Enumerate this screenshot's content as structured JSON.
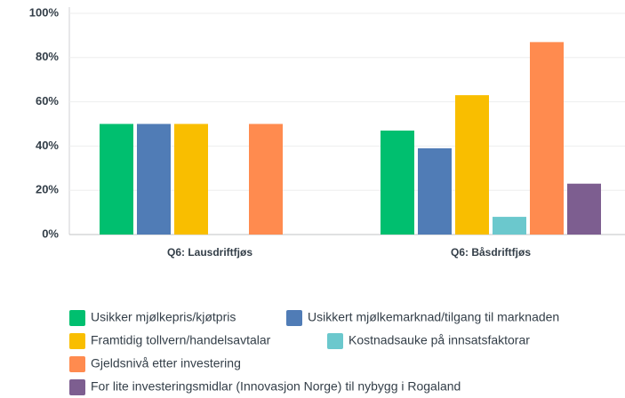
{
  "chart_data": {
    "type": "bar",
    "categories": [
      "Q6: Lausdriftfjøs",
      "Q6: Båsdriftfjøs"
    ],
    "series": [
      {
        "name": "Usikker mjølkepris/kjøtpris",
        "color": "#00bf6f",
        "values": [
          50,
          47
        ]
      },
      {
        "name": "Usikkert mjølkemarknad/tilgang til marknaden",
        "color": "#507cb6",
        "values": [
          50,
          39
        ]
      },
      {
        "name": "Framtidig tollvern/handelsavtalar",
        "color": "#f9be00",
        "values": [
          50,
          63
        ]
      },
      {
        "name": "Kostnadsauke på innsatsfaktorar",
        "color": "#6bc8cd",
        "values": [
          0,
          8
        ]
      },
      {
        "name": "Gjeldsnivå etter investering",
        "color": "#ff8b4f",
        "values": [
          50,
          87
        ]
      },
      {
        "name": "For lite investeringsmidlar (Innovasjon Norge) til nybygg i Rogaland",
        "color": "#7d5e90",
        "values": [
          0,
          23
        ]
      }
    ],
    "ylim": [
      0,
      100
    ],
    "yticks": [
      {
        "value": 0,
        "label": "0%"
      },
      {
        "value": 20,
        "label": "20%"
      },
      {
        "value": 40,
        "label": "40%"
      },
      {
        "value": 60,
        "label": "60%"
      },
      {
        "value": 80,
        "label": "80%"
      },
      {
        "value": 100,
        "label": "100%"
      }
    ],
    "grid": true
  }
}
